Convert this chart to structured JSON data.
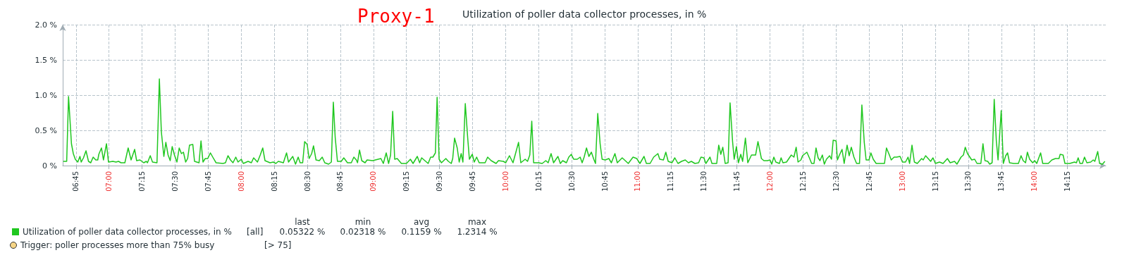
{
  "chart_data": {
    "type": "line",
    "title": "Utilization of poller data collector processes, in %",
    "annotations": [
      "Proxy-1",
      "last",
      "min",
      "avg",
      "max",
      "[all]",
      "0.05322 %",
      "0.02318 %",
      "0.1159 %",
      "1.2314 %",
      "Trigger: poller processes more than 75% busy",
      "[> 75]"
    ],
    "xlim": [
      6.65,
      14.54
    ],
    "xticks": [
      {
        "value": 6.75,
        "label": "06:45"
      },
      {
        "value": 7,
        "label": "07:00"
      },
      {
        "value": 7.25,
        "label": "07:15"
      },
      {
        "value": 7.5,
        "label": "07:30"
      },
      {
        "value": 7.75,
        "label": "07:45"
      },
      {
        "value": 8,
        "label": "08:00"
      },
      {
        "value": 8.25,
        "label": "08:15"
      },
      {
        "value": 8.5,
        "label": "08:30"
      },
      {
        "value": 8.75,
        "label": "08:45"
      },
      {
        "value": 9,
        "label": "09:00"
      },
      {
        "value": 9.25,
        "label": "09:15"
      },
      {
        "value": 9.5,
        "label": "09:30"
      },
      {
        "value": 9.75,
        "label": "09:45"
      },
      {
        "value": 10,
        "label": "10:00"
      },
      {
        "value": 10.25,
        "label": "10:15"
      },
      {
        "value": 10.5,
        "label": "10:30"
      },
      {
        "value": 10.75,
        "label": "10:45"
      },
      {
        "value": 11,
        "label": "11:00"
      },
      {
        "value": 11.25,
        "label": "11:15"
      },
      {
        "value": 11.5,
        "label": "11:30"
      },
      {
        "value": 11.75,
        "label": "11:45"
      },
      {
        "value": 12,
        "label": "12:00"
      },
      {
        "value": 12.25,
        "label": "12:15"
      },
      {
        "value": 12.5,
        "label": "12:30"
      },
      {
        "value": 12.75,
        "label": "12:45"
      },
      {
        "value": 13,
        "label": "13:00"
      },
      {
        "value": 13.25,
        "label": "13:15"
      },
      {
        "value": 13.5,
        "label": "13:30"
      },
      {
        "value": 13.75,
        "label": "13:45"
      },
      {
        "value": 14,
        "label": "14:00"
      },
      {
        "value": 14.25,
        "label": "14:15"
      }
    ],
    "ylim": [
      0,
      2
    ],
    "yticks": [
      {
        "value": 0,
        "label": "0 %"
      },
      {
        "value": 0.5,
        "label": "0.5 %"
      },
      {
        "value": 1,
        "label": "1.0 %"
      },
      {
        "value": 1.5,
        "label": "1.5 %"
      },
      {
        "value": 2,
        "label": "2.0 %"
      }
    ],
    "grid": true,
    "legend": "bottom left",
    "marker": "none",
    "line_style": "solid",
    "series": [
      {
        "name": "Utilization of poller data collector processes, in %",
        "color": "#1fc71f",
        "x": [
          6.654,
          6.68,
          6.694,
          6.716,
          6.73,
          6.745,
          6.764,
          6.78,
          6.79,
          6.807,
          6.826,
          6.845,
          6.862,
          6.88,
          6.9,
          6.915,
          6.923,
          6.943,
          6.958,
          6.981,
          6.996,
          7.029,
          7.053,
          7.072,
          7.091,
          7.12,
          7.145,
          7.167,
          7.194,
          7.209,
          7.234,
          7.263,
          7.282,
          7.291,
          7.312,
          7.329,
          7.363,
          7.381,
          7.396,
          7.415,
          7.43,
          7.447,
          7.463,
          7.478,
          7.495,
          7.514,
          7.531,
          7.548,
          7.563,
          7.58,
          7.595,
          7.609,
          7.634,
          7.647,
          7.681,
          7.696,
          7.711,
          7.728,
          7.747,
          7.767,
          7.788,
          7.81,
          7.862,
          7.881,
          7.9,
          7.919,
          7.938,
          7.959,
          7.976,
          8.001,
          8.016,
          8.052,
          8.077,
          8.094,
          8.123,
          8.144,
          8.163,
          8.18,
          8.218,
          8.243,
          8.262,
          8.281,
          8.319,
          8.343,
          8.358,
          8.39,
          8.411,
          8.431,
          8.446,
          8.465,
          8.48,
          8.499,
          8.514,
          8.533,
          8.547,
          8.566,
          8.591,
          8.613,
          8.632,
          8.661,
          8.682,
          8.697,
          8.711,
          8.728,
          8.757,
          8.776,
          8.804,
          8.833,
          8.852,
          8.871,
          8.88,
          8.895,
          8.912,
          8.937,
          8.952,
          8.994,
          9.057,
          9.075,
          9.097,
          9.115,
          9.13,
          9.146,
          9.161,
          9.18,
          9.212,
          9.25,
          9.28,
          9.3,
          9.332,
          9.35,
          9.365,
          9.414,
          9.433,
          9.45,
          9.469,
          9.482,
          9.497,
          9.515,
          9.548,
          9.567,
          9.589,
          9.6,
          9.614,
          9.634,
          9.649,
          9.664,
          9.677,
          9.695,
          9.713,
          9.726,
          9.748,
          9.763,
          9.781,
          9.8,
          9.845,
          9.864,
          9.891,
          9.928,
          9.946,
          9.983,
          10.001,
          10.029,
          10.056,
          10.075,
          10.098,
          10.115,
          10.148,
          10.166,
          10.183,
          10.198,
          10.212,
          10.249,
          10.277,
          10.304,
          10.322,
          10.344,
          10.363,
          10.396,
          10.414,
          10.432,
          10.46,
          10.478,
          10.497,
          10.515,
          10.542,
          10.564,
          10.579,
          10.594,
          10.612,
          10.63,
          10.649,
          10.667,
          10.68,
          10.697,
          10.715,
          10.73,
          10.754,
          10.781,
          10.8,
          10.827,
          10.845,
          10.882,
          10.928,
          10.964,
          10.992,
          11.016,
          11.047,
          11.065,
          11.093,
          11.12,
          11.152,
          11.166,
          11.194,
          11.212,
          11.23,
          11.258,
          11.28,
          11.304,
          11.331,
          11.359,
          11.383,
          11.405,
          11.432,
          11.46,
          11.478,
          11.5,
          11.515,
          11.546,
          11.561,
          11.597,
          11.612,
          11.628,
          11.643,
          11.661,
          11.683,
          11.698,
          11.717,
          11.729,
          11.746,
          11.761,
          11.779,
          11.793,
          11.814,
          11.832,
          11.86,
          11.891,
          11.909,
          11.935,
          11.954,
          11.981,
          12.0,
          12.013,
          12.029,
          12.044,
          12.071,
          12.084,
          12.098,
          12.125,
          12.161,
          12.181,
          12.198,
          12.212,
          12.234,
          12.246,
          12.279,
          12.3,
          12.315,
          12.333,
          12.348,
          12.364,
          12.378,
          12.396,
          12.411,
          12.427,
          12.451,
          12.465,
          12.478,
          12.5,
          12.51,
          12.523,
          12.545,
          12.561,
          12.583,
          12.599,
          12.615,
          12.635,
          12.655,
          12.677,
          12.695,
          12.713,
          12.727,
          12.749,
          12.763,
          12.781,
          12.803,
          12.866,
          12.881,
          12.903,
          12.917,
          12.939,
          12.957,
          12.984,
          13.002,
          13.025,
          13.044,
          13.056,
          13.074,
          13.092,
          13.114,
          13.147,
          13.159,
          13.177,
          13.201,
          13.215,
          13.233,
          13.251,
          13.282,
          13.309,
          13.342,
          13.363,
          13.396,
          13.414,
          13.445,
          13.463,
          13.477,
          13.494,
          13.526,
          13.548,
          13.566,
          13.595,
          13.611,
          13.626,
          13.647,
          13.662,
          13.68,
          13.696,
          13.712,
          13.725,
          13.749,
          13.765,
          13.783,
          13.797,
          13.812,
          13.843,
          13.879,
          13.899,
          13.915,
          13.933,
          13.947,
          13.964,
          13.987,
          14.002,
          14.018,
          14.047,
          14.063,
          14.105,
          14.132,
          14.159,
          14.186,
          14.195,
          14.217,
          14.231,
          14.267,
          14.303,
          14.318,
          14.331,
          14.345,
          14.363,
          14.379,
          14.397,
          14.426,
          14.445,
          14.457,
          14.479,
          14.493,
          14.515,
          14.533
        ],
        "values": [
          0.06,
          0.06,
          0.98,
          0.31,
          0.17,
          0.09,
          0.05,
          0.13,
          0.05,
          0.11,
          0.21,
          0.06,
          0.04,
          0.12,
          0.08,
          0.08,
          0.16,
          0.25,
          0.08,
          0.31,
          0.05,
          0.06,
          0.05,
          0.06,
          0.04,
          0.04,
          0.25,
          0.08,
          0.23,
          0.07,
          0.08,
          0.04,
          0.06,
          0.04,
          0.14,
          0.05,
          0.04,
          1.23,
          0.48,
          0.13,
          0.33,
          0.15,
          0.07,
          0.27,
          0.15,
          0.05,
          0.25,
          0.17,
          0.19,
          0.05,
          0.1,
          0.29,
          0.3,
          0.06,
          0.04,
          0.35,
          0.05,
          0.1,
          0.1,
          0.18,
          0.11,
          0.04,
          0.03,
          0.04,
          0.14,
          0.08,
          0.04,
          0.12,
          0.05,
          0.09,
          0.03,
          0.06,
          0.04,
          0.11,
          0.05,
          0.15,
          0.25,
          0.07,
          0.04,
          0.05,
          0.03,
          0.06,
          0.04,
          0.18,
          0.05,
          0.13,
          0.02,
          0.12,
          0.04,
          0.04,
          0.34,
          0.3,
          0.1,
          0.17,
          0.28,
          0.08,
          0.07,
          0.12,
          0.04,
          0.02,
          0.05,
          0.9,
          0.4,
          0.06,
          0.06,
          0.11,
          0.04,
          0.04,
          0.12,
          0.08,
          0.04,
          0.22,
          0.07,
          0.04,
          0.08,
          0.07,
          0.1,
          0.03,
          0.18,
          0.03,
          0.15,
          0.77,
          0.09,
          0.1,
          0.03,
          0.03,
          0.09,
          0.03,
          0.13,
          0.04,
          0.11,
          0.03,
          0.12,
          0.12,
          0.18,
          0.97,
          0.09,
          0.04,
          0.1,
          0.06,
          0.03,
          0.1,
          0.39,
          0.25,
          0.05,
          0.17,
          0.05,
          0.88,
          0.4,
          0.09,
          0.16,
          0.05,
          0.12,
          0.04,
          0.04,
          0.12,
          0.07,
          0.03,
          0.07,
          0.06,
          0.04,
          0.14,
          0.04,
          0.17,
          0.33,
          0.04,
          0.09,
          0.06,
          0.15,
          0.63,
          0.04,
          0.04,
          0.03,
          0.07,
          0.04,
          0.17,
          0.04,
          0.13,
          0.03,
          0.07,
          0.04,
          0.12,
          0.16,
          0.09,
          0.09,
          0.12,
          0.04,
          0.12,
          0.25,
          0.13,
          0.19,
          0.09,
          0.03,
          0.74,
          0.31,
          0.09,
          0.08,
          0.1,
          0.04,
          0.17,
          0.04,
          0.11,
          0.03,
          0.12,
          0.1,
          0.03,
          0.13,
          0.03,
          0.03,
          0.12,
          0.17,
          0.09,
          0.08,
          0.19,
          0.06,
          0.04,
          0.11,
          0.03,
          0.06,
          0.08,
          0.04,
          0.06,
          0.03,
          0.04,
          0.12,
          0.11,
          0.03,
          0.12,
          0.03,
          0.03,
          0.29,
          0.16,
          0.26,
          0.03,
          0.04,
          0.89,
          0.34,
          0.09,
          0.27,
          0.04,
          0.16,
          0.06,
          0.39,
          0.04,
          0.15,
          0.15,
          0.34,
          0.1,
          0.07,
          0.07,
          0.08,
          0.02,
          0.12,
          0.05,
          0.03,
          0.11,
          0.04,
          0.05,
          0.15,
          0.12,
          0.26,
          0.05,
          0.08,
          0.14,
          0.19,
          0.1,
          0.03,
          0.03,
          0.25,
          0.11,
          0.07,
          0.15,
          0.02,
          0.09,
          0.14,
          0.09,
          0.36,
          0.35,
          0.08,
          0.14,
          0.23,
          0.03,
          0.29,
          0.14,
          0.26,
          0.12,
          0.03,
          0.03,
          0.86,
          0.33,
          0.08,
          0.08,
          0.18,
          0.09,
          0.03,
          0.03,
          0.25,
          0.15,
          0.08,
          0.12,
          0.12,
          0.13,
          0.05,
          0.05,
          0.12,
          0.03,
          0.29,
          0.05,
          0.03,
          0.1,
          0.08,
          0.14,
          0.09,
          0.06,
          0.11,
          0.03,
          0.05,
          0.03,
          0.1,
          0.04,
          0.06,
          0.02,
          0.12,
          0.15,
          0.26,
          0.17,
          0.08,
          0.09,
          0.03,
          0.03,
          0.31,
          0.07,
          0.06,
          0.02,
          0.04,
          0.94,
          0.35,
          0.08,
          0.78,
          0.03,
          0.14,
          0.18,
          0.04,
          0.03,
          0.03,
          0.14,
          0.07,
          0.04,
          0.19,
          0.09,
          0.04,
          0.07,
          0.03,
          0.18,
          0.03,
          0.03,
          0.08,
          0.1,
          0.1,
          0.16,
          0.15,
          0.03,
          0.03,
          0.05,
          0.04,
          0.11,
          0.03,
          0.03,
          0.12,
          0.04,
          0.05,
          0.08,
          0.06,
          0.2,
          0.03,
          0.02,
          0.06
        ]
      }
    ]
  }
}
